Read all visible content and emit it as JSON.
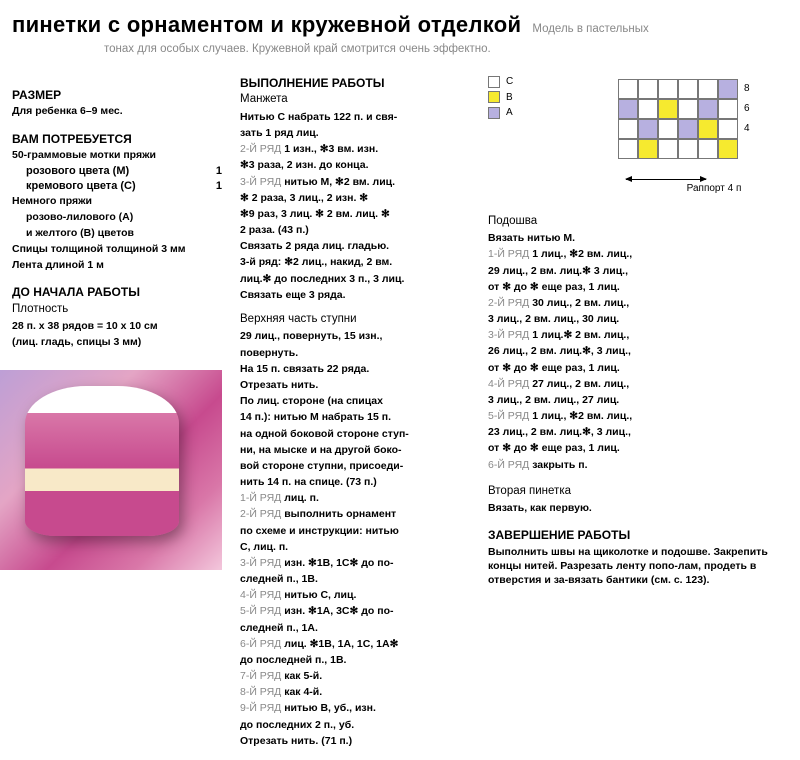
{
  "header": {
    "title": "пинетки с орнаментом и кружевной отделкой",
    "subtitle_top": "Модель в пастельных",
    "subtitle_line2": "тонах для особых случаев. Кружевной край смотрится очень эффектно."
  },
  "size": {
    "heading": "РАЗМЕР",
    "text": "Для ребенка 6–9 мес."
  },
  "materials": {
    "heading": "ВАМ ПОТРЕБУЕТСЯ",
    "intro": "50-граммовые мотки пряжи",
    "items": [
      {
        "label": "розового цвета (М)",
        "qty": "1"
      },
      {
        "label": "кремового цвета (С)",
        "qty": "1"
      }
    ],
    "extra1": "Немного пряжи",
    "extra2": "розово-лилового (А)",
    "extra3": "и желтого (В) цветов",
    "needles": "Спицы толщиной толщиной 3 мм",
    "ribbon": "Лента длиной 1 м"
  },
  "before": {
    "heading": "ДО НАЧАЛА РАБОТЫ",
    "sub": "Плотность",
    "line1": "28 п. х 38 рядов = 10 х 10 см",
    "line2": "(лиц. гладь, спицы 3 мм)"
  },
  "work": {
    "heading": "ВЫПОЛНЕНИЕ РАБОТЫ",
    "cuff_sub": "Манжета",
    "upper_sub": "Верхняя часть ступни",
    "cuff_lines": [
      {
        "grey": "",
        "b": "Нитью С набрать 122 п. и свя-"
      },
      {
        "grey": "",
        "b": "зать 1 ряд лиц."
      },
      {
        "grey": "2-Й РЯД ",
        "b": "1 изн., ✻3 вм. изн."
      },
      {
        "grey": "",
        "b": "✻3 раза, 2 изн. до конца."
      },
      {
        "grey": "3-Й РЯД ",
        "b": "нитью М, ✻2 вм. лиц."
      },
      {
        "grey": "",
        "b": "✻ 2 раза, 3 лиц., 2 изн. ✻"
      },
      {
        "grey": "",
        "b": "✻9 раз, 3 лиц. ✻ 2 вм. лиц. ✻"
      },
      {
        "grey": "",
        "b": "2 раза. (43 п.)"
      },
      {
        "grey": "",
        "b": "Связать 2 ряда лиц. гладью."
      },
      {
        "grey": "",
        "b": "3-й ряд: ✻2 лиц., накид, 2 вм."
      },
      {
        "grey": "",
        "b": "лиц.✻ до последних 3 п., 3 лиц."
      },
      {
        "grey": "",
        "b": "Связать еще 3 ряда."
      }
    ],
    "upper_lines_a": [
      "29 лиц., повернуть, 15 изн.,",
      "повернуть.",
      "На 15 п. связать 22 ряда.",
      "Отрезать нить.",
      "По лиц. стороне (на спицах",
      "14 п.): нитью М набрать 15 п.",
      "на одной боковой стороне ступ-",
      "ни, на мыске и на другой боко-",
      "вой стороне ступни, присоеди-",
      "нить 14 п. на спице. (73 п.)"
    ],
    "upper_rows": [
      {
        "grey": "1-Й РЯД ",
        "b": "лиц. п."
      },
      {
        "grey": "2-Й РЯД ",
        "b": "выполнить орнамент"
      },
      {
        "grey": "",
        "b": "по схеме и инструкции: нитью"
      },
      {
        "grey": "",
        "b": "С, лиц. п."
      },
      {
        "grey": "3-Й РЯД ",
        "b": "изн. ✻1В, 1С✻ до по-"
      },
      {
        "grey": "",
        "b": "следней п., 1В."
      },
      {
        "grey": "4-Й РЯД ",
        "b": "нитью С, лиц."
      },
      {
        "grey": "5-Й РЯД ",
        "b": "изн. ✻1А, 3С✻ до по-"
      },
      {
        "grey": "",
        "b": "следней п., 1А."
      },
      {
        "grey": "6-Й РЯД ",
        "b": "лиц. ✻1В, 1А, 1С, 1А✻"
      },
      {
        "grey": "",
        "b": "до последней п., 1В."
      },
      {
        "grey": "7-Й РЯД ",
        "b": "как 5-й."
      },
      {
        "grey": "8-Й РЯД ",
        "b": "как 4-й."
      },
      {
        "grey": "9-Й РЯД ",
        "b": "нитью В, уб., изн."
      },
      {
        "grey": "",
        "b": "до последних 2 п., уб."
      },
      {
        "grey": "",
        "b": "Отрезать нить. (71 п.)"
      }
    ]
  },
  "sole": {
    "heading": "Подошва",
    "intro": "Вязать нитью М.",
    "rows": [
      {
        "grey": "1-Й РЯД ",
        "b": "1 лиц., ✻2 вм. лиц.,"
      },
      {
        "grey": "",
        "b": "29 лиц., 2 вм. лиц.✻ 3 лиц.,"
      },
      {
        "grey": "",
        "b": "от ✻ до ✻ еще раз, 1 лиц."
      },
      {
        "grey": "2-Й РЯД ",
        "b": "30 лиц., 2 вм. лиц.,"
      },
      {
        "grey": "",
        "b": "3 лиц., 2 вм. лиц., 30 лиц."
      },
      {
        "grey": "3-Й РЯД ",
        "b": "1 лиц.✻ 2 вм. лиц.,"
      },
      {
        "grey": "",
        "b": "26 лиц., 2 вм. лиц.✻, 3 лиц.,"
      },
      {
        "grey": "",
        "b": "от ✻ до ✻ еще раз, 1 лиц."
      },
      {
        "grey": "4-Й РЯД ",
        "b": "27 лиц., 2 вм. лиц.,"
      },
      {
        "grey": "",
        "b": "3 лиц., 2 вм. лиц., 27 лиц."
      },
      {
        "grey": "5-Й РЯД ",
        "b": "1 лиц., ✻2 вм. лиц.,"
      },
      {
        "grey": "",
        "b": "23 лиц., 2 вм. лиц.✻, 3 лиц.,"
      },
      {
        "grey": "",
        "b": "от ✻ до ✻ еще раз, 1 лиц."
      },
      {
        "grey": "6-Й РЯД ",
        "b": "закрыть п."
      }
    ]
  },
  "second": {
    "heading": "Вторая пинетка",
    "text": "Вязать, как первую."
  },
  "finish": {
    "heading": "ЗАВЕРШЕНИЕ РАБОТЫ",
    "text": "Выполнить швы на щиколотке и подошве. Закрепить концы нитей. Разрезать ленту попо-лам, продеть в отверстия и за-вязать бантики (см. с. 123)."
  },
  "chart": {
    "legend": [
      {
        "cls": "sw-w",
        "label": "С"
      },
      {
        "cls": "sw-y",
        "label": "В"
      },
      {
        "cls": "sw-l",
        "label": "А"
      }
    ],
    "row_labels": [
      "8",
      "6",
      "4",
      ""
    ],
    "grid": [
      [
        "c-w",
        "c-w",
        "c-w",
        "c-w",
        "c-w",
        "c-l"
      ],
      [
        "c-l",
        "c-w",
        "c-y",
        "c-w",
        "c-l",
        "c-w"
      ],
      [
        "c-w",
        "c-l",
        "c-w",
        "c-l",
        "c-y",
        "c-w"
      ],
      [
        "c-w",
        "c-y",
        "c-w",
        "c-w",
        "c-w",
        "c-y"
      ]
    ],
    "rapport": "Раппорт 4 п"
  }
}
